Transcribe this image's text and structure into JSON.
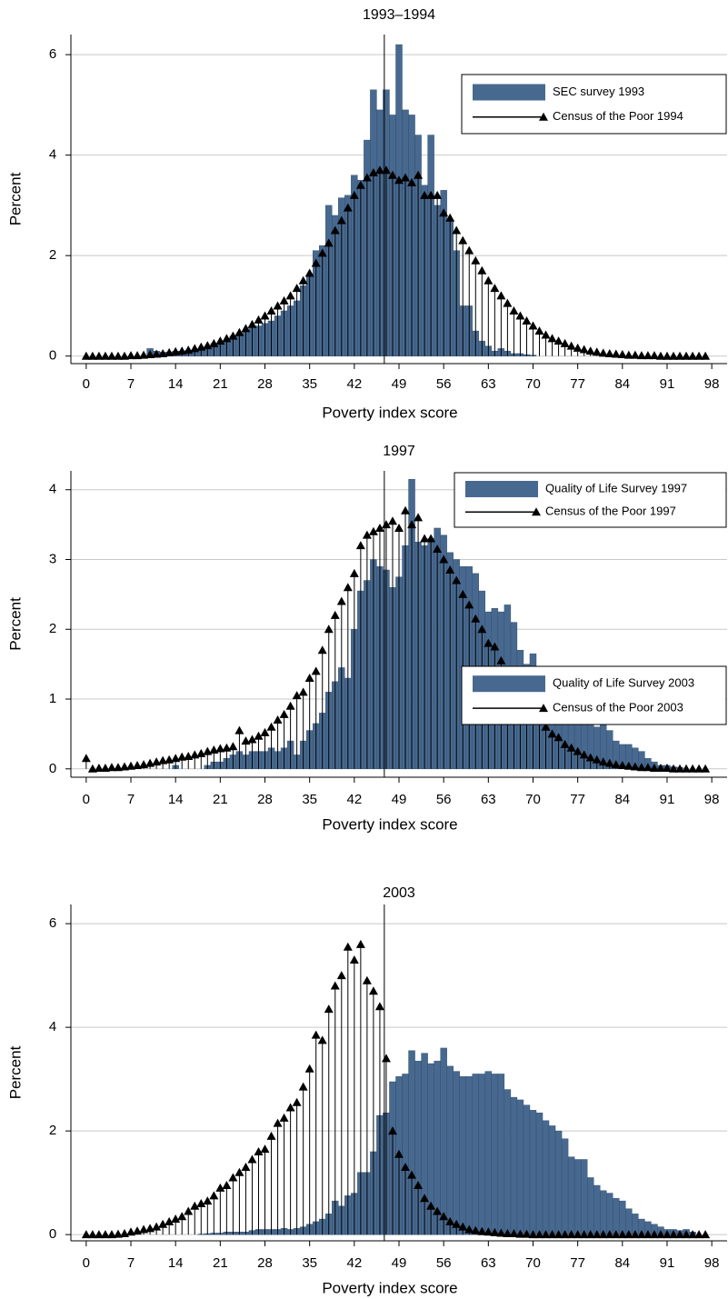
{
  "chart_data": [
    {
      "type": "bar",
      "title": "1993–1994",
      "x_label": "Poverty index score",
      "y_label": "Percent",
      "xlim": [
        -2.4,
        100.4
      ],
      "xticks": [
        0,
        7,
        14,
        21,
        28,
        35,
        42,
        49,
        56,
        63,
        70,
        77,
        84,
        91,
        98
      ],
      "ylim": [
        -0.15,
        6.4
      ],
      "yticks": [
        0,
        2,
        4,
        6
      ],
      "grid": true,
      "legend": "top-right",
      "reference_line": 46.7,
      "x": [
        0,
        1,
        2,
        3,
        4,
        5,
        6,
        7,
        8,
        9,
        10,
        11,
        12,
        13,
        14,
        15,
        16,
        17,
        18,
        19,
        20,
        21,
        22,
        23,
        24,
        25,
        26,
        27,
        28,
        29,
        30,
        31,
        32,
        33,
        34,
        35,
        36,
        37,
        38,
        39,
        40,
        41,
        42,
        43,
        44,
        45,
        46,
        47,
        48,
        49,
        50,
        51,
        52,
        53,
        54,
        55,
        56,
        57,
        58,
        59,
        60,
        61,
        62,
        63,
        64,
        65,
        66,
        67,
        68,
        69,
        70,
        71,
        72,
        73,
        74,
        75,
        76,
        77,
        78,
        79,
        80,
        81,
        82,
        83,
        84,
        85,
        86,
        87,
        88,
        89,
        90,
        91,
        92,
        93,
        94,
        95,
        96,
        97
      ],
      "series": [
        {
          "name": "SEC survey 1993",
          "kind": "bar",
          "color": "#48698f",
          "values": [
            0,
            0,
            0,
            0,
            0,
            0,
            0,
            0,
            0,
            0,
            0.15,
            0.1,
            0.08,
            0.08,
            0.1,
            0.1,
            0.12,
            0.12,
            0.15,
            0.2,
            0.25,
            0.25,
            0.3,
            0.4,
            0.45,
            0.5,
            0.55,
            0.6,
            0.65,
            0.7,
            0.8,
            0.9,
            1.0,
            1.1,
            1.4,
            1.6,
            2.1,
            2.2,
            3.0,
            2.8,
            3.15,
            3.2,
            3.6,
            3.5,
            4.3,
            5.3,
            4.9,
            5.3,
            4.8,
            6.2,
            4.9,
            4.8,
            4.4,
            3.4,
            4.4,
            3.0,
            3.3,
            2.7,
            2.1,
            1.0,
            1.0,
            0.5,
            0.3,
            0.2,
            0.1,
            0.15,
            0.1,
            0.05,
            0.05,
            0.03,
            0.02,
            0,
            0,
            0,
            0,
            0,
            0,
            0,
            0,
            0,
            0,
            0,
            0,
            0,
            0,
            0,
            0,
            0,
            0,
            0,
            0,
            0,
            0,
            0,
            0,
            0,
            0,
            0
          ]
        },
        {
          "name": "Census of the Poor 1994",
          "kind": "spike",
          "color": "#000000",
          "values": [
            0,
            0,
            0,
            0,
            0,
            0,
            0,
            0.01,
            0.01,
            0.02,
            0.03,
            0.04,
            0.05,
            0.07,
            0.09,
            0.1,
            0.12,
            0.15,
            0.18,
            0.21,
            0.25,
            0.3,
            0.35,
            0.4,
            0.47,
            0.55,
            0.63,
            0.72,
            0.8,
            0.9,
            1.0,
            1.1,
            1.2,
            1.35,
            1.5,
            1.65,
            1.85,
            2.05,
            2.25,
            2.5,
            2.7,
            2.95,
            3.2,
            3.4,
            3.55,
            3.65,
            3.7,
            3.7,
            3.6,
            3.5,
            3.55,
            3.45,
            3.6,
            3.2,
            3.2,
            3.2,
            2.85,
            2.75,
            2.5,
            2.3,
            2.1,
            1.9,
            1.7,
            1.5,
            1.35,
            1.2,
            1.05,
            0.9,
            0.8,
            0.7,
            0.6,
            0.5,
            0.42,
            0.35,
            0.3,
            0.25,
            0.2,
            0.16,
            0.13,
            0.1,
            0.08,
            0.06,
            0.05,
            0.04,
            0.03,
            0.02,
            0.02,
            0.01,
            0.01,
            0.01,
            0,
            0,
            0,
            0,
            0,
            0,
            0,
            0
          ]
        }
      ]
    },
    {
      "type": "bar",
      "title": "1997",
      "x_label": "Poverty index score",
      "y_label": "Percent",
      "xlim": [
        -2.4,
        100.4
      ],
      "xticks": [
        0,
        7,
        14,
        21,
        28,
        35,
        42,
        49,
        56,
        63,
        70,
        77,
        84,
        91,
        98
      ],
      "ylim": [
        -0.12,
        4.27
      ],
      "yticks": [
        0,
        1,
        2,
        3,
        4
      ],
      "grid": true,
      "legend": "top-right",
      "reference_line": 46.7,
      "x": [
        0,
        1,
        2,
        3,
        4,
        5,
        6,
        7,
        8,
        9,
        10,
        11,
        12,
        13,
        14,
        15,
        16,
        17,
        18,
        19,
        20,
        21,
        22,
        23,
        24,
        25,
        26,
        27,
        28,
        29,
        30,
        31,
        32,
        33,
        34,
        35,
        36,
        37,
        38,
        39,
        40,
        41,
        42,
        43,
        44,
        45,
        46,
        47,
        48,
        49,
        50,
        51,
        52,
        53,
        54,
        55,
        56,
        57,
        58,
        59,
        60,
        61,
        62,
        63,
        64,
        65,
        66,
        67,
        68,
        69,
        70,
        71,
        72,
        73,
        74,
        75,
        76,
        77,
        78,
        79,
        80,
        81,
        82,
        83,
        84,
        85,
        86,
        87,
        88,
        89,
        90,
        91,
        92,
        93,
        94,
        95,
        96,
        97
      ],
      "series": [
        {
          "name": "Quality of Life Survey 1997",
          "kind": "bar",
          "color": "#48698f",
          "values": [
            0,
            0,
            0,
            0,
            0,
            0,
            0,
            0,
            0,
            0,
            0,
            0,
            0,
            0,
            0.05,
            0,
            0,
            0,
            0,
            0.05,
            0.1,
            0.1,
            0.15,
            0.2,
            0.25,
            0.2,
            0.25,
            0.25,
            0.25,
            0.3,
            0.25,
            0.3,
            0.4,
            0.2,
            0.4,
            0.55,
            0.65,
            0.8,
            1.1,
            1.25,
            1.45,
            1.3,
            2.0,
            2.55,
            2.7,
            3.0,
            2.9,
            2.85,
            2.6,
            2.75,
            3.2,
            4.15,
            3.25,
            3.2,
            3.3,
            3.45,
            3.35,
            3.1,
            3.0,
            2.9,
            2.9,
            2.8,
            2.55,
            2.25,
            2.3,
            2.25,
            2.35,
            2.1,
            1.7,
            1.5,
            1.65,
            1.3,
            1.0,
            0.95,
            0.8,
            0.75,
            0.7,
            0.65,
            0.75,
            0.7,
            0.6,
            0.65,
            0.55,
            0.4,
            0.35,
            0.35,
            0.3,
            0.25,
            0.15,
            0.1,
            0.05,
            0.05,
            0.03,
            0.02,
            0,
            0,
            0,
            0
          ]
        },
        {
          "name": "Census of the Poor 1997",
          "kind": "spike",
          "color": "#000000",
          "values": [
            0.15,
            0,
            0.01,
            0.01,
            0.02,
            0.02,
            0.03,
            0.04,
            0.05,
            0.06,
            0.08,
            0.1,
            0.12,
            0.13,
            0.15,
            0.17,
            0.18,
            0.2,
            0.22,
            0.25,
            0.27,
            0.29,
            0.3,
            0.32,
            0.55,
            0.4,
            0.42,
            0.47,
            0.52,
            0.6,
            0.7,
            0.78,
            0.9,
            1.05,
            1.1,
            1.3,
            1.4,
            1.7,
            2.0,
            2.2,
            2.4,
            2.6,
            2.8,
            3.2,
            3.35,
            3.4,
            3.45,
            3.5,
            3.55,
            3.45,
            3.7,
            3.5,
            3.6,
            3.3,
            3.3,
            3.15,
            3.0,
            2.85,
            2.7,
            2.5,
            2.35,
            2.15,
            2.0,
            1.8,
            1.75,
            1.55,
            1.4,
            1.25,
            1.1,
            1.0,
            0.85,
            0.7,
            0.6,
            0.5,
            0.45,
            0.35,
            0.3,
            0.25,
            0.2,
            0.16,
            0.13,
            0.1,
            0.08,
            0.06,
            0.05,
            0.04,
            0.03,
            0.02,
            0.02,
            0.01,
            0.01,
            0.01,
            0,
            0,
            0,
            0,
            0,
            0
          ]
        }
      ]
    },
    {
      "type": "bar",
      "title": "2003",
      "x_label": "Poverty index score",
      "y_label": "Percent",
      "xlim": [
        -2.4,
        100.4
      ],
      "xticks": [
        0,
        7,
        14,
        21,
        28,
        35,
        42,
        49,
        56,
        63,
        70,
        77,
        84,
        91,
        98
      ],
      "ylim": [
        -0.12,
        6.37
      ],
      "yticks": [
        0,
        2,
        4,
        6
      ],
      "grid": true,
      "legend": "top-right",
      "reference_line": 46.7,
      "x": [
        0,
        1,
        2,
        3,
        4,
        5,
        6,
        7,
        8,
        9,
        10,
        11,
        12,
        13,
        14,
        15,
        16,
        17,
        18,
        19,
        20,
        21,
        22,
        23,
        24,
        25,
        26,
        27,
        28,
        29,
        30,
        31,
        32,
        33,
        34,
        35,
        36,
        37,
        38,
        39,
        40,
        41,
        42,
        43,
        44,
        45,
        46,
        47,
        48,
        49,
        50,
        51,
        52,
        53,
        54,
        55,
        56,
        57,
        58,
        59,
        60,
        61,
        62,
        63,
        64,
        65,
        66,
        67,
        68,
        69,
        70,
        71,
        72,
        73,
        74,
        75,
        76,
        77,
        78,
        79,
        80,
        81,
        82,
        83,
        84,
        85,
        86,
        87,
        88,
        89,
        90,
        91,
        92,
        93,
        94,
        95,
        96,
        97
      ],
      "series": [
        {
          "name": "Quality of Life Survey 2003",
          "kind": "bar",
          "color": "#48698f",
          "values": [
            0,
            0,
            0,
            0,
            0,
            0,
            0,
            0,
            0,
            0,
            0,
            0,
            0,
            0,
            0,
            0,
            0,
            0,
            0.01,
            0.02,
            0.03,
            0.03,
            0.05,
            0.05,
            0.05,
            0.05,
            0.08,
            0.1,
            0.1,
            0.1,
            0.1,
            0.12,
            0.1,
            0.12,
            0.15,
            0.2,
            0.25,
            0.3,
            0.4,
            0.65,
            0.55,
            0.75,
            0.8,
            1.2,
            1.2,
            1.6,
            2.3,
            2.35,
            2.95,
            3.05,
            3.1,
            3.55,
            3.35,
            3.5,
            3.3,
            3.35,
            3.6,
            3.25,
            3.15,
            3.05,
            3.05,
            3.1,
            3.1,
            3.15,
            3.1,
            3.1,
            2.8,
            2.65,
            2.6,
            2.5,
            2.4,
            2.35,
            2.2,
            2.1,
            2.0,
            1.85,
            1.5,
            1.45,
            1.45,
            1.1,
            0.95,
            0.85,
            0.8,
            0.7,
            0.65,
            0.5,
            0.4,
            0.3,
            0.25,
            0.2,
            0.15,
            0.1,
            0.1,
            0.08,
            0.1,
            0.05,
            0,
            0
          ]
        },
        {
          "name": "Census of the Poor 2003",
          "kind": "spike",
          "color": "#000000",
          "values": [
            0,
            0,
            0,
            0,
            0,
            0.01,
            0.02,
            0.05,
            0.07,
            0.1,
            0.12,
            0.15,
            0.2,
            0.25,
            0.3,
            0.35,
            0.45,
            0.55,
            0.6,
            0.65,
            0.75,
            0.9,
            0.95,
            1.1,
            1.2,
            1.3,
            1.45,
            1.6,
            1.65,
            1.9,
            2.15,
            2.25,
            2.45,
            2.55,
            2.85,
            3.2,
            3.85,
            3.75,
            4.35,
            4.8,
            5.0,
            5.55,
            5.3,
            5.6,
            4.9,
            4.7,
            4.4,
            3.4,
            2.0,
            1.55,
            1.3,
            1.15,
            0.95,
            0.7,
            0.55,
            0.45,
            0.35,
            0.25,
            0.2,
            0.15,
            0.1,
            0.08,
            0.06,
            0.05,
            0.04,
            0.03,
            0.02,
            0.02,
            0.01,
            0.01,
            0,
            0,
            0,
            0,
            0,
            0,
            0,
            0,
            0,
            0,
            0,
            0,
            0,
            0,
            0,
            0,
            0,
            0,
            0,
            0,
            0,
            0,
            0,
            0,
            0,
            0,
            0,
            0
          ]
        }
      ]
    }
  ]
}
